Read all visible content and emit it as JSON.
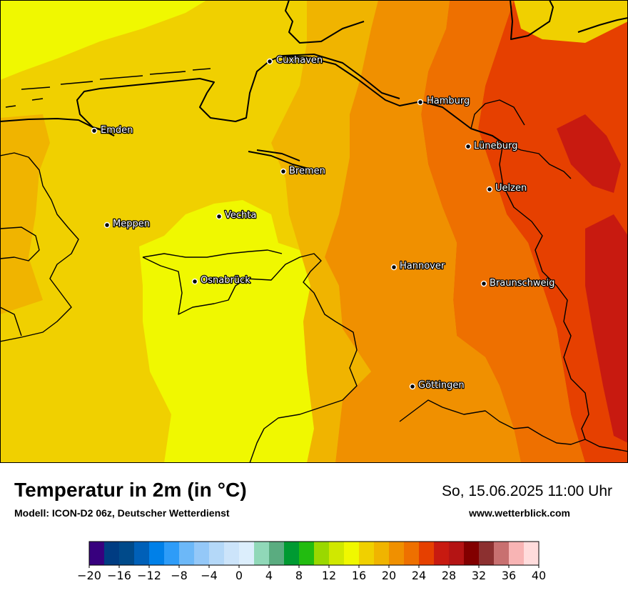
{
  "title": "Temperatur in 2m (in °C)",
  "subtitle": "Modell: ICON-D2 06z, Deutscher Wetterdienst",
  "datetime": "So, 15.06.2025 11:00 Uhr",
  "website": "www.wetterblick.com",
  "cities": [
    {
      "name": "Cuxhaven"
    },
    {
      "name": "Hamburg"
    },
    {
      "name": "Emden"
    },
    {
      "name": "Lüneburg"
    },
    {
      "name": "Bremen"
    },
    {
      "name": "Uelzen"
    },
    {
      "name": "Vechta"
    },
    {
      "name": "Meppen"
    },
    {
      "name": "Hannover"
    },
    {
      "name": "Osnabrück"
    },
    {
      "name": "Braunschweig"
    },
    {
      "name": "Göttingen"
    }
  ],
  "legend": {
    "min": -20,
    "max": 40,
    "step": 2,
    "tick_labels": [
      "−20",
      "−16",
      "−12",
      "−8",
      "−4",
      "0",
      "4",
      "8",
      "12",
      "16",
      "20",
      "24",
      "28",
      "32",
      "36",
      "40"
    ],
    "colors": [
      "#37007e",
      "#003c82",
      "#004a8a",
      "#0060b8",
      "#0080e8",
      "#2e9cf8",
      "#6cb8f8",
      "#94c8f8",
      "#b4d8f8",
      "#cce4fa",
      "#dceefc",
      "#90d8b8",
      "#5aac80",
      "#009a32",
      "#22bc10",
      "#9ad800",
      "#d0e800",
      "#f0f800",
      "#f0d000",
      "#f0b400",
      "#f09000",
      "#ee7000",
      "#e64000",
      "#c81a10",
      "#b41414",
      "#820000",
      "#8c3030",
      "#c87070",
      "#f8b4b4",
      "#ffdcdc"
    ]
  },
  "zone_colors": {
    "c14": "#f0f800",
    "c16": "#f0d000",
    "c18": "#f0b400",
    "c20": "#f09000",
    "c22": "#ee7000",
    "c24": "#e64000",
    "c26": "#c81a10"
  }
}
